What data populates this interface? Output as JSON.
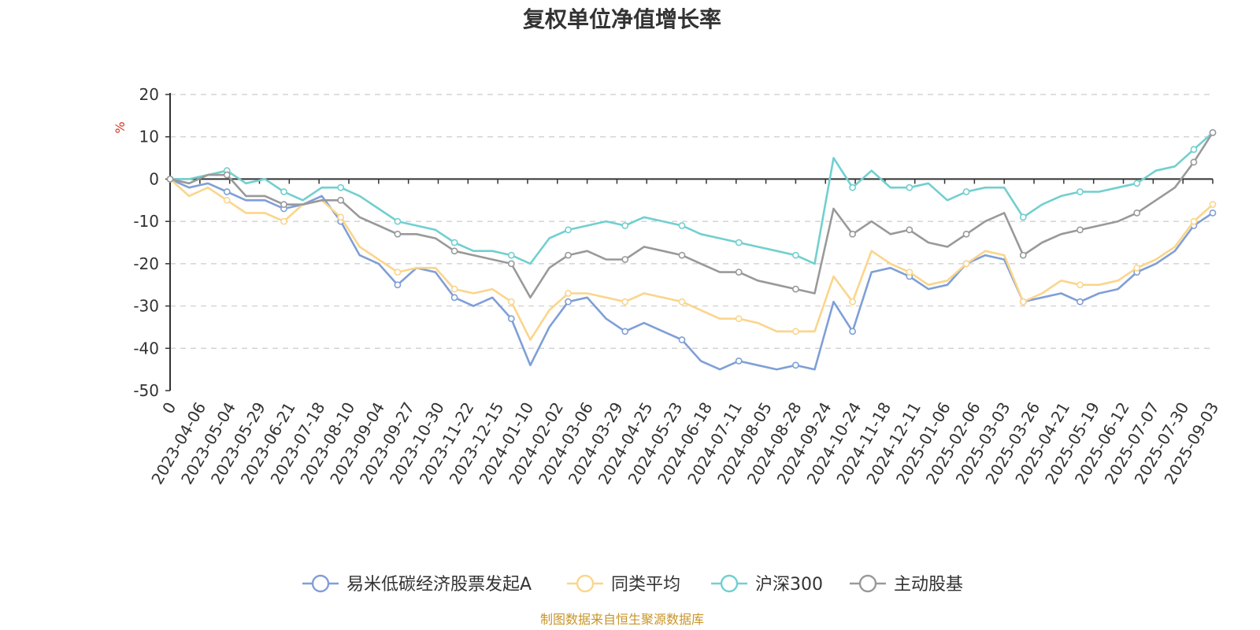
{
  "chart_data": {
    "type": "line",
    "title": "复权单位净值增长率",
    "y_unit": "%",
    "ylim": [
      -50,
      20
    ],
    "y_ticks": [
      20,
      10,
      0,
      -10,
      -20,
      -30,
      -40,
      -50
    ],
    "grid": "horizontal dashed",
    "legend_position": "bottom",
    "x_labels": [
      "0",
      "2023-04-06",
      "2023-05-04",
      "2023-05-29",
      "2023-06-21",
      "2023-07-18",
      "2023-08-10",
      "2023-09-04",
      "2023-09-27",
      "2023-10-30",
      "2023-11-22",
      "2023-12-15",
      "2024-01-10",
      "2024-02-02",
      "2024-03-06",
      "2024-03-29",
      "2024-04-25",
      "2024-05-23",
      "2024-06-18",
      "2024-07-11",
      "2024-08-05",
      "2024-08-28",
      "2024-09-24",
      "2024-10-24",
      "2024-11-18",
      "2024-12-11",
      "2025-01-06",
      "2025-02-06",
      "2025-03-03",
      "2025-03-26",
      "2025-04-21",
      "2025-05-19",
      "2025-06-12",
      "2025-07-07",
      "2025-07-30",
      "2025-09-03"
    ],
    "series": [
      {
        "name": "易米低碳经济股票发起A",
        "color": "#7f9fd6",
        "values": [
          0,
          -2,
          -1,
          -3,
          -5,
          -5,
          -7,
          -6,
          -4,
          -10,
          -18,
          -20,
          -25,
          -21,
          -22,
          -28,
          -30,
          -28,
          -33,
          -44,
          -35,
          -29,
          -28,
          -33,
          -36,
          -34,
          -36,
          -38,
          -43,
          -45,
          -43,
          -44,
          -45,
          -44,
          -45,
          -29,
          -36,
          -22,
          -21,
          -23,
          -26,
          -25,
          -20,
          -18,
          -19,
          -29,
          -28,
          -27,
          -29,
          -27,
          -26,
          -22,
          -20,
          -17,
          -11,
          -8
        ]
      },
      {
        "name": "同类平均",
        "color": "#fbd58b",
        "values": [
          0,
          -4,
          -2,
          -5,
          -8,
          -8,
          -10,
          -6,
          -5,
          -9,
          -16,
          -19,
          -22,
          -21,
          -21,
          -26,
          -27,
          -26,
          -29,
          -38,
          -31,
          -27,
          -27,
          -28,
          -29,
          -27,
          -28,
          -29,
          -31,
          -33,
          -33,
          -34,
          -36,
          -36,
          -36,
          -23,
          -29,
          -17,
          -20,
          -22,
          -25,
          -24,
          -20,
          -17,
          -18,
          -29,
          -27,
          -24,
          -25,
          -25,
          -24,
          -21,
          -19,
          -16,
          -10,
          -6
        ]
      },
      {
        "name": "沪深300",
        "color": "#72cfcf",
        "values": [
          0,
          0,
          1,
          2,
          -1,
          0,
          -3,
          -5,
          -2,
          -2,
          -4,
          -7,
          -10,
          -11,
          -12,
          -15,
          -17,
          -17,
          -18,
          -20,
          -14,
          -12,
          -11,
          -10,
          -11,
          -9,
          -10,
          -11,
          -13,
          -14,
          -15,
          -16,
          -17,
          -18,
          -20,
          5,
          -2,
          2,
          -2,
          -2,
          -1,
          -5,
          -3,
          -2,
          -2,
          -9,
          -6,
          -4,
          -3,
          -3,
          -2,
          -1,
          2,
          3,
          7,
          11
        ]
      },
      {
        "name": "主动股基",
        "color": "#999999",
        "values": [
          0,
          -1,
          1,
          1,
          -4,
          -4,
          -6,
          -6,
          -5,
          -5,
          -9,
          -11,
          -13,
          -13,
          -14,
          -17,
          -18,
          -19,
          -20,
          -28,
          -21,
          -18,
          -17,
          -19,
          -19,
          -16,
          -17,
          -18,
          -20,
          -22,
          -22,
          -24,
          -25,
          -26,
          -27,
          -7,
          -13,
          -10,
          -13,
          -12,
          -15,
          -16,
          -13,
          -10,
          -8,
          -18,
          -15,
          -13,
          -12,
          -11,
          -10,
          -8,
          -5,
          -2,
          4,
          11
        ]
      }
    ]
  },
  "source": "制图数据来自恒生聚源数据库"
}
